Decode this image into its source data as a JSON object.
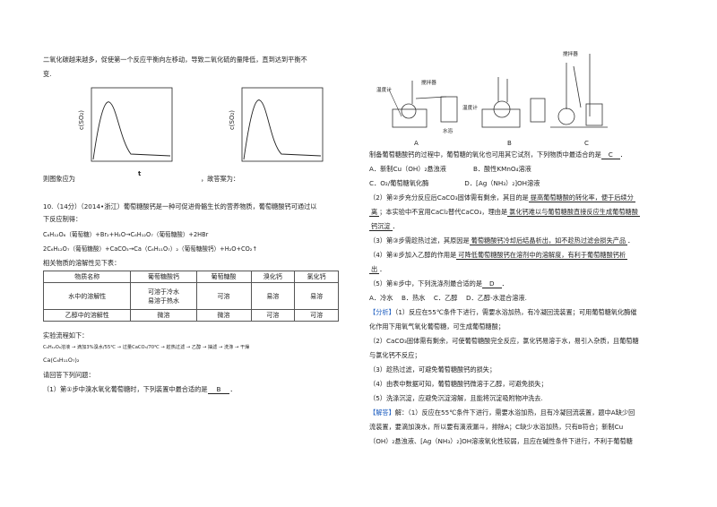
{
  "left": {
    "intro1": "二氧化碳越来越多，促使第一个反应平衡向左移动，导致二氧化硫的量降低，直到达到平衡不",
    "intro2": "变.",
    "graph_ylabel": "c(SO₂)",
    "graph_xlabel": "t",
    "graph_caption": "则图象应为",
    "graph_caption2": "，故答案为：",
    "q10_head": "10.（14分）（2014•浙江）葡萄糖酸钙是一种可促进骨骼生长的营养物质，葡萄糖酸钙可通过以",
    "q10_head2": "下反应制得：",
    "eq1": "C₆H₁₂O₆（葡萄糖）+Br₂+H₂O→C₆H₁₂O₇（葡萄糖酸）+2HBr",
    "eq2": "2C₆H₁₂O₇（葡萄糖酸）+CaCO₃→Ca（C₆H₁₁O₇）₂（葡萄糖酸钙）+H₂O+CO₂↑",
    "table_intro": "相关物质的溶解性见下表：",
    "table_headers": [
      "物质名称",
      "葡萄糖酸钙",
      "葡萄糖酸",
      "溴化钙",
      "氯化钙"
    ],
    "table_row1": [
      "水中的溶解性",
      "可溶于冷水\n易溶于热水",
      "可溶",
      "易溶",
      "易溶"
    ],
    "table_row2": [
      "乙醇中的溶解性",
      "微溶",
      "微溶",
      "可溶",
      "可溶"
    ],
    "flow_intro": "实验流程如下：",
    "flow": "C₆H₁₂O₆溶液 → 滴加3%溴水/55℃ → 过量CaCO₃/70℃ → 趁热过滤 → 乙醇 → 抽滤 → 洗涤 → 干燥",
    "flow_end": "Ca(C₆H₁₁O₇)₂",
    "q_intro": "请回答下列问题：",
    "q1": "（1）第①步中溴水氧化葡萄糖时，下列装置中最合适的是",
    "q1_ans": "B"
  },
  "right": {
    "fig_labels": [
      "温度计",
      "搅拌器",
      "搅拌器",
      "温度计",
      "水浴"
    ],
    "fig_abc": [
      "A",
      "B",
      "C"
    ],
    "l1": "制备葡萄糖酸钙的过程中，葡萄糖的氧化也可用其它试剂，下列物质中最适合的是",
    "l1_ans": "C",
    "opt_a": "A．新制Cu（OH）₂悬浊液",
    "opt_b": "B．酸性KMnO₄溶液",
    "opt_c": "C．O₂/葡萄糖氧化酶",
    "opt_d": "D．[Ag（NH₃）₂]OH溶液",
    "q2a": "（2）第②步充分反应后CaCO₃固体需有剩余，其目的是",
    "q2a_ans": "提高葡萄糖酸的转化率，便于后续分",
    "q2b_ans": "离",
    "q2c": "；本实验中不宜用CaCl₂替代CaCO₃，理由是",
    "q2c_ans": "氯化钙难以与葡萄糖酸直接反应生成葡萄糖酸",
    "q2d_ans": "钙沉淀",
    "q3": "（3）第③步需趁热过滤，其原因是",
    "q3_ans": "葡萄糖酸钙冷却后结晶析出，如不趁热过滤会损失产品",
    "q4": "（4）第④步加入乙醇的作用是",
    "q4_ans": "可降低葡萄糖酸钙在溶剂中的溶解度，有利于葡萄糖酸钙析",
    "q4_ans2": "出",
    "q5": "（5）第⑥步中，下列洗涤剂最合适的是",
    "q5_ans": "D",
    "q5_opts": "A．冷水　 B．热水　 C．乙醇　 D．乙醇-水混合溶液.",
    "fenxi_tag": "【分析】",
    "fx1": "（1）反应在55℃条件下进行，需要水浴加热，有冷凝回流装置；可用葡萄糖氧化酶催",
    "fx1b": "化作用下用氧气氧化葡萄糖，可生成葡萄糖酸；",
    "fx2": "（2）CaCO₃固体需有剩余，可使葡萄糖酸完全反应，氯化钙易溶于水，易引入杂质，且葡萄糖",
    "fx2b": "与氯化钙不反应；",
    "fx3": "（3）趁热过滤，可避免葡萄糖酸钙的损失；",
    "fx4": "（4）由表中数据可知，葡萄糖酸钙微溶于乙醇，可避免损失；",
    "fx5": "（5）洗涤沉淀，应避免沉淀溶解，且能将沉淀吸附物冲洗去.",
    "jieda_tag": "【解答】",
    "jd1": "解：（1）反应在55℃条件下进行，需要水浴加热，且有冷凝回流装置，题中A缺少回",
    "jd2": "流装置，要滴加溴水，所以要有滴液漏斗，排除A；C缺少水浴加热，只有B符合；新制Cu",
    "jd3": "（OH）₂悬浊液、[Ag（NH₃）₂]OH溶液氧化性较弱，且应在碱性条件下进行，不利于葡萄糖"
  }
}
